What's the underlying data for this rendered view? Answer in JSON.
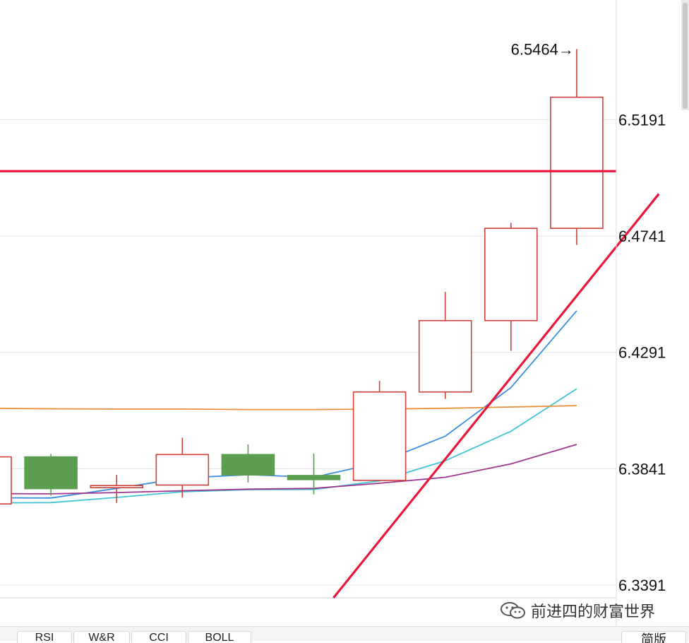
{
  "chart_data": {
    "type": "candlestick",
    "y_axis": {
      "position": "right",
      "ticks": [
        6.5191,
        6.4741,
        6.4291,
        6.3841,
        6.3391
      ],
      "ylim": [
        6.3342,
        6.5654
      ]
    },
    "grid": true,
    "peak_annotation": {
      "value": 6.5464,
      "label": "6.5464→"
    },
    "candles": [
      {
        "open": 6.3887,
        "close": 6.3705,
        "high": 6.3887,
        "low": 6.3705,
        "direction": "up"
      },
      {
        "open": 6.3887,
        "close": 6.3764,
        "high": 6.3898,
        "low": 6.3737,
        "direction": "down"
      },
      {
        "open": 6.3771,
        "close": 6.3776,
        "high": 6.3817,
        "low": 6.3709,
        "direction": "up"
      },
      {
        "open": 6.3778,
        "close": 6.3896,
        "high": 6.3961,
        "low": 6.3729,
        "direction": "up"
      },
      {
        "open": 6.3896,
        "close": 6.3817,
        "high": 6.3935,
        "low": 6.3788,
        "direction": "down"
      },
      {
        "open": 6.3815,
        "close": 6.3799,
        "high": 6.39,
        "low": 6.3742,
        "direction": "down"
      },
      {
        "open": 6.3796,
        "close": 6.4138,
        "high": 6.4181,
        "low": 6.3796,
        "direction": "up"
      },
      {
        "open": 6.4138,
        "close": 6.4414,
        "high": 6.4525,
        "low": 6.4111,
        "direction": "up"
      },
      {
        "open": 6.4414,
        "close": 6.4771,
        "high": 6.4792,
        "low": 6.4297,
        "direction": "up"
      },
      {
        "open": 6.4771,
        "close": 6.5278,
        "high": 6.5464,
        "low": 6.4707,
        "direction": "up"
      }
    ],
    "moving_averages": [
      {
        "color": "#3a8fe0",
        "values": [
          6.3729,
          6.3728,
          6.3765,
          6.3805,
          6.3818,
          6.3808,
          6.3865,
          6.3967,
          6.4155,
          6.4452
        ]
      },
      {
        "color": "#41c5d6",
        "values": [
          6.3709,
          6.371,
          6.373,
          6.3752,
          6.376,
          6.3761,
          6.3794,
          6.3872,
          6.3986,
          6.415
        ]
      },
      {
        "color": "#a0358f",
        "values": [
          6.3745,
          6.3744,
          6.3749,
          6.3756,
          6.3762,
          6.3765,
          6.3785,
          6.3808,
          6.386,
          6.3935
        ]
      },
      {
        "color": "#e8903a",
        "values": [
          6.4075,
          6.4073,
          6.4072,
          6.4072,
          6.407,
          6.407,
          6.4072,
          6.4075,
          6.408,
          6.4085
        ]
      }
    ],
    "horizontal_line": {
      "value": 6.4992,
      "color": "#e8183c"
    },
    "trend_line": {
      "from": [
        5.3,
        6.3342
      ],
      "to": [
        10.25,
        6.4904
      ],
      "color": "#e8183c"
    },
    "colors": {
      "up": "#d0403a",
      "down": "#5c9e50",
      "grid": "#e6e6e6"
    }
  },
  "tabs": [
    "RSI",
    "W&R",
    "CCI",
    "BOLL"
  ],
  "tab_right": "简版",
  "watermark": {
    "text": "前进四的财富世界",
    "icon": "wechat-icon"
  }
}
